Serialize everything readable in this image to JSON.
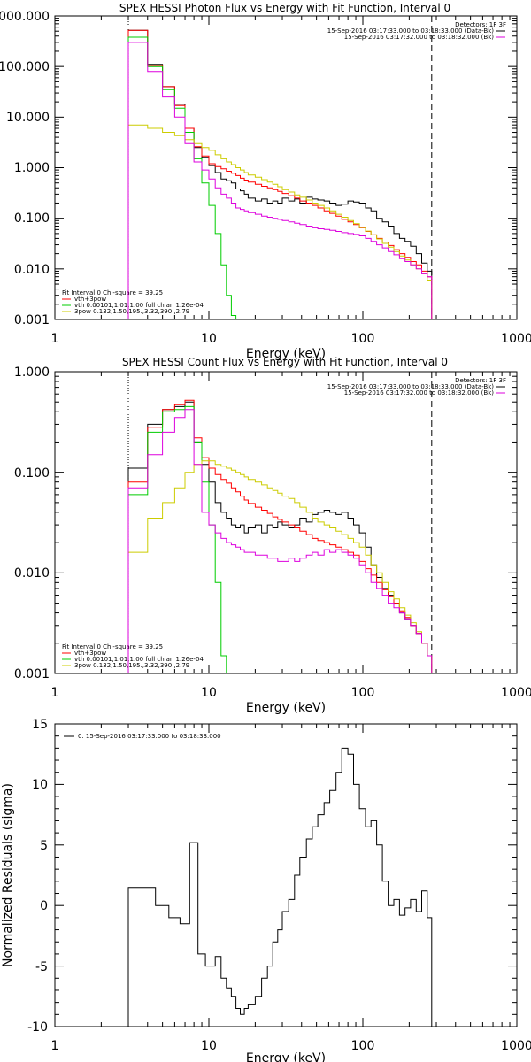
{
  "chart_data": [
    {
      "type": "line",
      "title": "SPEX HESSI Photon Flux vs Energy with Fit Function, Interval 0",
      "xlabel": "Energy (keV)",
      "ylabel": "",
      "xscale": "log",
      "yscale": "log",
      "xlim": [
        1,
        1000
      ],
      "ylim": [
        0.001,
        1000
      ],
      "x_ticks": [
        "1",
        "10",
        "100",
        "1000"
      ],
      "y_ticks": [
        "0.001",
        "0.010",
        "0.100",
        "1.000",
        "10.000",
        "100.000",
        "1000.000"
      ],
      "legend_top": {
        "header": "Detectors: 1F 3F",
        "entries": [
          {
            "label": "15-Sep-2016 03:17:33.000 to 03:18:33.000 (Data-Bk)",
            "color": "#000000"
          },
          {
            "label": "15-Sep-2016 03:17:32.000 to 03:18:32.000 (Bk)",
            "color": "#dd00dd"
          }
        ]
      },
      "legend_bottom": {
        "header": "Fit Interval 0   Chi-square = 39.25",
        "entries": [
          {
            "label": "vth+3pow",
            "color": "#ff0000"
          },
          {
            "label": "vth 0.00101,1.01,1.00  full chian 1.26e-04",
            "color": "#00cc00"
          },
          {
            "label": "3pow 0.132,1.50,195.,3.32,390.,2.79",
            "color": "#cccc00"
          }
        ]
      },
      "vlines": [
        {
          "x": 3.0,
          "style": "dotted"
        },
        {
          "x": 280,
          "style": "dashed"
        }
      ],
      "bin_edges": [
        3.0,
        3.5,
        4.0,
        4.5,
        5.0,
        5.5,
        6.0,
        6.5,
        7.0,
        7.5,
        8.0,
        8.5,
        9.0,
        9.5,
        10.0,
        11.0,
        12.0,
        13.0,
        14.0,
        15.0,
        16.0,
        17.0,
        18.0,
        20.0,
        22.0,
        24.0,
        26.0,
        28.0,
        30.0,
        33.0,
        36.0,
        39.0,
        43.0,
        47.0,
        51.0,
        56.0,
        61.0,
        67.0,
        73.0,
        80.0,
        87.0,
        95.0,
        104.0,
        113.0,
        123.0,
        134.0,
        146.0,
        159.0,
        173.0,
        188.0,
        204.0,
        222.0,
        241.0,
        262.0,
        280.0
      ],
      "series": [
        {
          "name": "Data-Bk",
          "color": "#000000",
          "values": [
            520,
            520,
            110,
            110,
            40,
            40,
            18,
            18,
            6,
            6,
            2.5,
            2.5,
            1.6,
            1.6,
            1.1,
            0.8,
            0.6,
            0.55,
            0.5,
            0.38,
            0.35,
            0.3,
            0.25,
            0.22,
            0.24,
            0.2,
            0.22,
            0.2,
            0.25,
            0.22,
            0.24,
            0.2,
            0.26,
            0.24,
            0.23,
            0.22,
            0.2,
            0.18,
            0.19,
            0.22,
            0.21,
            0.2,
            0.16,
            0.14,
            0.1,
            0.085,
            0.07,
            0.05,
            0.04,
            0.035,
            0.028,
            0.02,
            0.013,
            0.009
          ]
        },
        {
          "name": "vth+3pow",
          "color": "#ff0000",
          "values": [
            520,
            520,
            105,
            105,
            40,
            40,
            17,
            17,
            6,
            6,
            2.6,
            2.6,
            1.7,
            1.7,
            1.2,
            1.05,
            0.95,
            0.85,
            0.78,
            0.7,
            0.62,
            0.57,
            0.52,
            0.47,
            0.43,
            0.4,
            0.37,
            0.34,
            0.31,
            0.28,
            0.25,
            0.22,
            0.2,
            0.18,
            0.16,
            0.14,
            0.125,
            0.11,
            0.095,
            0.085,
            0.075,
            0.065,
            0.055,
            0.047,
            0.04,
            0.034,
            0.029,
            0.024,
            0.02,
            0.017,
            0.014,
            0.012,
            0.009,
            0.007
          ]
        },
        {
          "name": "vth",
          "color": "#00cc00",
          "values": [
            380,
            380,
            100,
            100,
            35,
            35,
            15,
            15,
            5,
            5,
            1.5,
            1.5,
            0.5,
            0.5,
            0.18,
            0.05,
            0.012,
            0.003,
            0.0012,
            0.0008
          ]
        },
        {
          "name": "3pow",
          "color": "#cccc00",
          "values": [
            7,
            7,
            6,
            6,
            5,
            5,
            4.3,
            4.3,
            3.6,
            3.6,
            3.0,
            3.0,
            2.5,
            2.5,
            2.2,
            1.8,
            1.5,
            1.3,
            1.15,
            1.0,
            0.9,
            0.8,
            0.72,
            0.65,
            0.58,
            0.52,
            0.47,
            0.42,
            0.37,
            0.33,
            0.29,
            0.26,
            0.23,
            0.2,
            0.18,
            0.16,
            0.14,
            0.12,
            0.105,
            0.09,
            0.078,
            0.066,
            0.056,
            0.047,
            0.039,
            0.032,
            0.027,
            0.022,
            0.018,
            0.015,
            0.012,
            0.01,
            0.008,
            0.006
          ]
        },
        {
          "name": "Bk",
          "color": "#dd00dd",
          "values": [
            300,
            300,
            80,
            80,
            25,
            25,
            10,
            10,
            3,
            3,
            1.3,
            1.3,
            0.9,
            0.9,
            0.6,
            0.4,
            0.3,
            0.25,
            0.2,
            0.16,
            0.15,
            0.14,
            0.13,
            0.12,
            0.11,
            0.105,
            0.1,
            0.095,
            0.09,
            0.085,
            0.08,
            0.075,
            0.07,
            0.065,
            0.062,
            0.06,
            0.058,
            0.055,
            0.052,
            0.05,
            0.048,
            0.045,
            0.04,
            0.035,
            0.03,
            0.026,
            0.022,
            0.019,
            0.016,
            0.014,
            0.012,
            0.01,
            0.008,
            0.007
          ]
        }
      ]
    },
    {
      "type": "line",
      "title": "SPEX HESSI Count Flux vs Energy with Fit Function, Interval 0",
      "xlabel": "Energy (keV)",
      "ylabel": "",
      "xscale": "log",
      "yscale": "log",
      "xlim": [
        1,
        1000
      ],
      "ylim": [
        0.001,
        1
      ],
      "x_ticks": [
        "1",
        "10",
        "100",
        "1000"
      ],
      "y_ticks": [
        "0.001",
        "0.010",
        "0.100",
        "1.000"
      ],
      "legend_top": {
        "header": "Detectors: 1F 3F",
        "entries": [
          {
            "label": "15-Sep-2016 03:17:33.000 to 03:18:33.000 (Data-Bk)",
            "color": "#000000"
          },
          {
            "label": "15-Sep-2016 03:17:32.000 to 03:18:32.000 (Bk)",
            "color": "#dd00dd"
          }
        ]
      },
      "legend_bottom": {
        "header": "Fit Interval 0   Chi-square = 39.25",
        "entries": [
          {
            "label": "vth+3pow",
            "color": "#ff0000"
          },
          {
            "label": "vth 0.00101,1.01,1.00  full chian 1.26e-04",
            "color": "#00cc00"
          },
          {
            "label": "3pow 0.132,1.50,195.,3.32,390.,2.79",
            "color": "#cccc00"
          }
        ]
      },
      "vlines": [
        {
          "x": 3.0,
          "style": "dotted"
        },
        {
          "x": 280,
          "style": "dashed"
        }
      ],
      "bin_edges": [
        3.0,
        3.5,
        4.0,
        4.5,
        5.0,
        5.5,
        6.0,
        6.5,
        7.0,
        7.5,
        8.0,
        8.5,
        9.0,
        9.5,
        10.0,
        11.0,
        12.0,
        13.0,
        14.0,
        15.0,
        16.0,
        17.0,
        18.0,
        20.0,
        22.0,
        24.0,
        26.0,
        28.0,
        30.0,
        33.0,
        36.0,
        39.0,
        43.0,
        47.0,
        51.0,
        56.0,
        61.0,
        67.0,
        73.0,
        80.0,
        87.0,
        95.0,
        104.0,
        113.0,
        123.0,
        134.0,
        146.0,
        159.0,
        173.0,
        188.0,
        204.0,
        222.0,
        241.0,
        262.0,
        280.0
      ],
      "series": [
        {
          "name": "Data-Bk",
          "color": "#000000",
          "values": [
            0.11,
            0.11,
            0.3,
            0.3,
            0.42,
            0.42,
            0.45,
            0.45,
            0.5,
            0.5,
            0.2,
            0.2,
            0.12,
            0.12,
            0.08,
            0.05,
            0.04,
            0.035,
            0.03,
            0.028,
            0.03,
            0.025,
            0.028,
            0.03,
            0.025,
            0.03,
            0.028,
            0.032,
            0.03,
            0.028,
            0.03,
            0.035,
            0.032,
            0.038,
            0.04,
            0.042,
            0.04,
            0.038,
            0.04,
            0.035,
            0.03,
            0.025,
            0.018,
            0.012,
            0.009,
            0.007,
            0.006,
            0.005,
            0.004,
            0.0035,
            0.003,
            0.0025,
            0.002,
            0.0015
          ]
        },
        {
          "name": "vth+3pow",
          "color": "#ff0000",
          "values": [
            0.08,
            0.08,
            0.28,
            0.28,
            0.42,
            0.42,
            0.47,
            0.47,
            0.52,
            0.52,
            0.22,
            0.22,
            0.14,
            0.14,
            0.11,
            0.095,
            0.085,
            0.078,
            0.07,
            0.064,
            0.058,
            0.053,
            0.049,
            0.045,
            0.042,
            0.039,
            0.036,
            0.034,
            0.032,
            0.03,
            0.028,
            0.026,
            0.024,
            0.022,
            0.021,
            0.02,
            0.019,
            0.018,
            0.017,
            0.016,
            0.015,
            0.013,
            0.011,
            0.0095,
            0.008,
            0.0068,
            0.0058,
            0.005,
            0.0042,
            0.0036,
            0.003,
            0.0025,
            0.002,
            0.0015
          ]
        },
        {
          "name": "vth",
          "color": "#00cc00",
          "values": [
            0.06,
            0.06,
            0.25,
            0.25,
            0.4,
            0.4,
            0.42,
            0.42,
            0.45,
            0.45,
            0.2,
            0.2,
            0.08,
            0.08,
            0.03,
            0.008,
            0.0015,
            0.0008
          ]
        },
        {
          "name": "3pow",
          "color": "#cccc00",
          "values": [
            0.016,
            0.016,
            0.035,
            0.035,
            0.05,
            0.05,
            0.07,
            0.07,
            0.1,
            0.1,
            0.12,
            0.12,
            0.13,
            0.13,
            0.13,
            0.12,
            0.115,
            0.11,
            0.105,
            0.1,
            0.095,
            0.09,
            0.085,
            0.08,
            0.075,
            0.07,
            0.066,
            0.062,
            0.058,
            0.055,
            0.05,
            0.045,
            0.04,
            0.035,
            0.032,
            0.03,
            0.028,
            0.026,
            0.024,
            0.022,
            0.02,
            0.018,
            0.015,
            0.012,
            0.01,
            0.008,
            0.0065,
            0.0055,
            0.0045,
            0.0038,
            0.0032,
            0.0026,
            0.002,
            0.0015
          ]
        },
        {
          "name": "Bk",
          "color": "#dd00dd",
          "values": [
            0.07,
            0.07,
            0.15,
            0.15,
            0.25,
            0.25,
            0.35,
            0.35,
            0.42,
            0.42,
            0.12,
            0.12,
            0.04,
            0.04,
            0.03,
            0.025,
            0.022,
            0.02,
            0.019,
            0.018,
            0.017,
            0.016,
            0.016,
            0.015,
            0.015,
            0.014,
            0.014,
            0.013,
            0.013,
            0.014,
            0.013,
            0.014,
            0.015,
            0.016,
            0.015,
            0.017,
            0.016,
            0.017,
            0.016,
            0.015,
            0.014,
            0.012,
            0.01,
            0.008,
            0.007,
            0.006,
            0.005,
            0.0045,
            0.004,
            0.0035,
            0.003,
            0.0025,
            0.002,
            0.0015
          ]
        }
      ]
    },
    {
      "type": "line",
      "title": "",
      "xlabel": "Energy (keV)",
      "ylabel": "Normalized Residuals (sigma)",
      "xscale": "log",
      "yscale": "linear",
      "xlim": [
        1,
        1000
      ],
      "ylim": [
        -10,
        15
      ],
      "x_ticks": [
        "1",
        "10",
        "100",
        "1000"
      ],
      "y_ticks": [
        "-10",
        "-5",
        "0",
        "5",
        "10",
        "15"
      ],
      "legend_top": {
        "header": "",
        "entries": [
          {
            "label": "0. 15-Sep-2016 03:17:33.000 to 03:18:33.000",
            "color": "#000000"
          }
        ]
      },
      "bin_edges": [
        3.0,
        3.5,
        4.0,
        4.5,
        5.0,
        5.5,
        6.0,
        6.5,
        7.0,
        7.5,
        8.0,
        8.5,
        9.0,
        9.5,
        10.0,
        11.0,
        12.0,
        13.0,
        14.0,
        15.0,
        16.0,
        17.0,
        18.0,
        20.0,
        22.0,
        24.0,
        26.0,
        28.0,
        30.0,
        33.0,
        36.0,
        39.0,
        43.0,
        47.0,
        51.0,
        56.0,
        61.0,
        67.0,
        73.0,
        80.0,
        87.0,
        95.0,
        104.0,
        113.0,
        123.0,
        134.0,
        146.0,
        159.0,
        173.0,
        188.0,
        204.0,
        222.0,
        241.0,
        262.0,
        280.0
      ],
      "series": [
        {
          "name": "0. 15-Sep-2016 03:17:33.000 to 03:18:33.000",
          "color": "#000000",
          "values": [
            1.5,
            1.5,
            1.5,
            0,
            0,
            -1,
            -1,
            -1.5,
            -1.5,
            5.2,
            5.2,
            -4,
            -4,
            -5,
            -5,
            -4.2,
            -6,
            -6.8,
            -7.5,
            -8.5,
            -9,
            -8.5,
            -8.2,
            -7.5,
            -6,
            -5,
            -3,
            -2,
            -0.5,
            0.5,
            2.5,
            4,
            5.5,
            6.5,
            7.5,
            8.5,
            9.5,
            11,
            13,
            12.5,
            10,
            8,
            6.5,
            7,
            5,
            2,
            0,
            0.5,
            -0.8,
            -0.2,
            0.5,
            -0.5,
            1.2,
            -1
          ]
        }
      ]
    }
  ]
}
